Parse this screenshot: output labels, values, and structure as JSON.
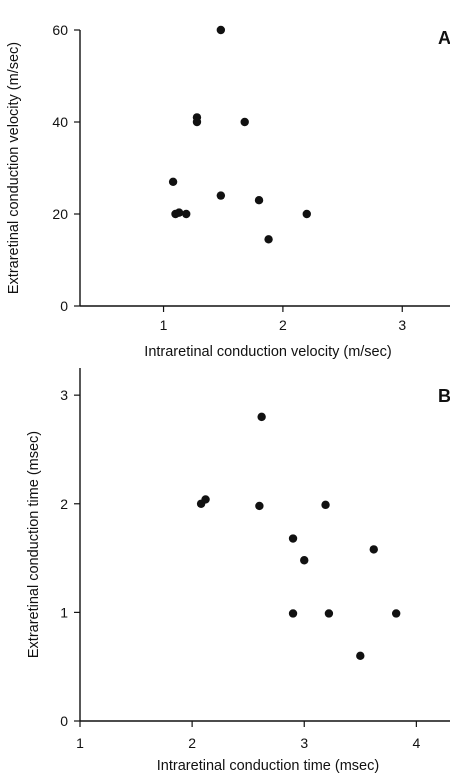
{
  "chart_data": [
    {
      "type": "scatter",
      "panel_label": "A",
      "title": "",
      "xlabel": "Intraretinal conduction velocity (m/sec)",
      "ylabel": "Extraretinal conduction velocity (m/sec)",
      "xlim": [
        0.3,
        3.4
      ],
      "ylim": [
        0,
        60
      ],
      "x_ticks": [
        1,
        2,
        3
      ],
      "y_ticks": [
        0,
        20,
        40,
        60
      ],
      "x_tick_labels": [
        "1",
        "2",
        "3"
      ],
      "y_tick_labels": [
        "0",
        "20",
        "40",
        "60"
      ],
      "grid": false,
      "points": [
        {
          "x": 1.48,
          "y": 60
        },
        {
          "x": 1.28,
          "y": 41
        },
        {
          "x": 1.28,
          "y": 40
        },
        {
          "x": 1.68,
          "y": 40
        },
        {
          "x": 1.08,
          "y": 27
        },
        {
          "x": 1.48,
          "y": 24
        },
        {
          "x": 1.8,
          "y": 23
        },
        {
          "x": 1.1,
          "y": 20
        },
        {
          "x": 1.13,
          "y": 20.3
        },
        {
          "x": 1.19,
          "y": 20
        },
        {
          "x": 2.2,
          "y": 20
        },
        {
          "x": 1.88,
          "y": 14.5
        }
      ]
    },
    {
      "type": "scatter",
      "panel_label": "B",
      "title": "",
      "xlabel": "Intraretinal conduction time (msec)",
      "ylabel": "Extraretinal conduction time (msec)",
      "xlim": [
        1,
        4.3
      ],
      "ylim": [
        0,
        3.25
      ],
      "x_ticks": [
        1,
        2,
        3,
        4
      ],
      "y_ticks": [
        0,
        1,
        2,
        3
      ],
      "x_tick_labels": [
        "1",
        "2",
        "3",
        "4"
      ],
      "y_tick_labels": [
        "0",
        "1",
        "2",
        "3"
      ],
      "grid": false,
      "points": [
        {
          "x": 2.62,
          "y": 2.8
        },
        {
          "x": 2.08,
          "y": 2.0
        },
        {
          "x": 2.12,
          "y": 2.04
        },
        {
          "x": 2.6,
          "y": 1.98
        },
        {
          "x": 3.19,
          "y": 1.99
        },
        {
          "x": 2.9,
          "y": 1.68
        },
        {
          "x": 3.62,
          "y": 1.58
        },
        {
          "x": 3.0,
          "y": 1.48
        },
        {
          "x": 2.9,
          "y": 0.99
        },
        {
          "x": 3.22,
          "y": 0.99
        },
        {
          "x": 3.82,
          "y": 0.99
        },
        {
          "x": 3.5,
          "y": 0.6
        }
      ]
    }
  ]
}
